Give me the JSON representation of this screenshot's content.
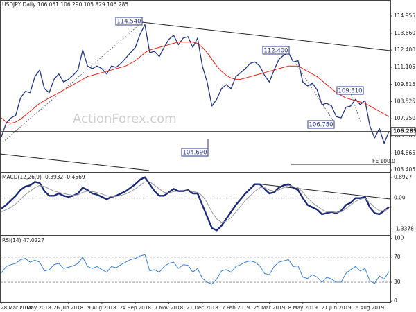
{
  "chart_data": [
    {
      "type": "line",
      "title": "USDJPY Daily 106.051 106.290 105.829 106.285",
      "watermark": "ActionForex.com",
      "categories": [
        "28 Mar 2018",
        null,
        null,
        null,
        null,
        null,
        null,
        "11 May 2018",
        null,
        null,
        null,
        null,
        null,
        null,
        "26 Jun 2018",
        null,
        null,
        null,
        null,
        null,
        null,
        "9 Aug 2018",
        null,
        null,
        null,
        null,
        null,
        null,
        "24 Sep 2018",
        null,
        null,
        null,
        null,
        null,
        null,
        "7 Nov 2018",
        null,
        null,
        null,
        null,
        null,
        null,
        "21 Dec 2018",
        null,
        null,
        null,
        null,
        null,
        null,
        "7 Feb 2019",
        null,
        null,
        null,
        null,
        null,
        null,
        "25 Mar 2019",
        null,
        null,
        null,
        null,
        null,
        null,
        "8 May 2019",
        null,
        null,
        null,
        null,
        null,
        null,
        "21 Jun 2019",
        null,
        null,
        null,
        null,
        null,
        null,
        "6 Aug 2019",
        null,
        null,
        null,
        null
      ],
      "series": [
        {
          "color": "#1f3580",
          "values": [
            105.9,
            106.9,
            107.3,
            107.5,
            108.8,
            109.3,
            109.2,
            110.4,
            110.9,
            109.5,
            109.2,
            110.2,
            110.6,
            110.0,
            110.2,
            110.5,
            110.9,
            112.4,
            111.2,
            111.0,
            111.2,
            111.0,
            110.6,
            111.2,
            111.1,
            111.4,
            111.8,
            112.2,
            112.6,
            113.6,
            114.3,
            112.2,
            112.3,
            111.9,
            112.6,
            113.2,
            113.5,
            112.8,
            113.3,
            113.4,
            112.6,
            113.3,
            111.2,
            110.0,
            108.2,
            108.7,
            109.5,
            109.8,
            109.5,
            110.4,
            110.7,
            111.0,
            111.4,
            111.5,
            111.2,
            110.5,
            110.0,
            110.9,
            111.7,
            112.0,
            112.2,
            111.5,
            111.6,
            110.0,
            109.7,
            109.9,
            109.4,
            108.3,
            108.4,
            108.2,
            107.4,
            107.3,
            108.1,
            108.2,
            108.7,
            108.3,
            108.6,
            106.7,
            105.8,
            106.5,
            105.4,
            106.3
          ]
        },
        {
          "color": "#e32219",
          "values": [
            107.3,
            107.0,
            106.9,
            107.0,
            107.2,
            107.5,
            107.8,
            108.1,
            108.4,
            108.6,
            108.8,
            109.0,
            109.2,
            109.4,
            109.6,
            109.8,
            110.0,
            110.2,
            110.4,
            110.5,
            110.6,
            110.7,
            110.8,
            110.9,
            111.0,
            111.1,
            111.2,
            111.4,
            111.6,
            111.9,
            112.2,
            112.4,
            112.5,
            112.6,
            112.7,
            112.8,
            112.9,
            113.0,
            113.0,
            113.0,
            113.0,
            112.9,
            112.6,
            112.2,
            111.7,
            111.2,
            110.8,
            110.5,
            110.3,
            110.2,
            110.2,
            110.3,
            110.4,
            110.5,
            110.6,
            110.7,
            110.8,
            110.9,
            111.0,
            111.1,
            111.2,
            111.2,
            111.2,
            111.0,
            110.8,
            110.6,
            110.4,
            110.1,
            109.8,
            109.5,
            109.2,
            109.0,
            108.8,
            108.7,
            108.6,
            108.5,
            108.4,
            108.2,
            108.0,
            107.8,
            107.6,
            107.4
          ]
        }
      ],
      "ylim": [
        103.25,
        116.1
      ],
      "yticks": [
        103.405,
        104.665,
        {
          "value": 105.96,
          "label": "105.960"
        },
        {
          "value": 107.25,
          "label": "107.250"
        },
        108.525,
        109.815,
        111.105,
        {
          "value": 112.4,
          "label": "112.400"
        },
        {
          "value": 113.66,
          "label": "113.660"
        },
        114.955
      ],
      "last_price": 106.285,
      "annotations": [
        "114.540",
        "104.690",
        "112.400",
        "109.310",
        "106.780",
        "FE 100.0"
      ]
    },
    {
      "type": "line",
      "title": "MACD(12,26,9) -0.3932 -0.4569",
      "series": [
        {
          "color": "#1c2a78",
          "values": [
            -0.45,
            -0.3,
            -0.1,
            0.1,
            0.35,
            0.5,
            0.55,
            0.7,
            0.65,
            0.3,
            0.1,
            0.1,
            0.2,
            0.1,
            0.05,
            0.1,
            0.2,
            0.45,
            0.35,
            0.2,
            0.15,
            0.05,
            -0.05,
            0.05,
            0.1,
            0.2,
            0.3,
            0.45,
            0.6,
            0.8,
            0.9,
            0.6,
            0.3,
            0.1,
            0.1,
            0.25,
            0.4,
            0.3,
            0.3,
            0.35,
            0.2,
            0.2,
            -0.3,
            -0.8,
            -1.3,
            -1.4,
            -1.2,
            -0.9,
            -0.6,
            -0.3,
            -0.05,
            0.2,
            0.4,
            0.6,
            0.6,
            0.4,
            0.2,
            0.25,
            0.45,
            0.55,
            0.6,
            0.45,
            0.35,
            0.0,
            -0.3,
            -0.4,
            -0.5,
            -0.7,
            -0.65,
            -0.6,
            -0.65,
            -0.55,
            -0.3,
            -0.2,
            0.0,
            0.0,
            0.05,
            -0.4,
            -0.65,
            -0.7,
            -0.55,
            -0.39
          ]
        },
        {
          "color": "#9a9a9a",
          "values": [
            -0.6,
            -0.5,
            -0.4,
            -0.25,
            -0.05,
            0.15,
            0.3,
            0.45,
            0.55,
            0.5,
            0.4,
            0.3,
            0.25,
            0.2,
            0.15,
            0.12,
            0.14,
            0.25,
            0.3,
            0.28,
            0.24,
            0.18,
            0.1,
            0.07,
            0.07,
            0.12,
            0.18,
            0.28,
            0.4,
            0.55,
            0.7,
            0.7,
            0.55,
            0.4,
            0.25,
            0.22,
            0.28,
            0.3,
            0.3,
            0.32,
            0.28,
            0.25,
            0.1,
            -0.2,
            -0.6,
            -0.9,
            -1.05,
            -1.0,
            -0.85,
            -0.6,
            -0.35,
            -0.1,
            0.1,
            0.3,
            0.45,
            0.45,
            0.35,
            0.3,
            0.35,
            0.45,
            0.55,
            0.5,
            0.45,
            0.25,
            0.0,
            -0.2,
            -0.35,
            -0.5,
            -0.6,
            -0.6,
            -0.62,
            -0.6,
            -0.45,
            -0.3,
            -0.15,
            -0.05,
            0.0,
            -0.2,
            -0.4,
            -0.55,
            -0.55,
            -0.46
          ]
        }
      ],
      "ylim": [
        -1.6,
        1.07
      ],
      "yticks": [
        -1.3378,
        {
          "value": 0,
          "label": "0.00"
        },
        0.8927
      ],
      "reference_lines": [
        0
      ]
    },
    {
      "type": "line",
      "title": "RSI(14) 47.0227",
      "series": [
        {
          "color": "#3a7fd5",
          "values": [
            45,
            55,
            58,
            60,
            66,
            68,
            62,
            65,
            62,
            48,
            50,
            58,
            60,
            52,
            54,
            56,
            60,
            70,
            55,
            52,
            55,
            50,
            46,
            55,
            53,
            58,
            62,
            66,
            68,
            72,
            74,
            48,
            50,
            46,
            55,
            60,
            62,
            52,
            58,
            57,
            46,
            52,
            36,
            30,
            27,
            35,
            48,
            50,
            46,
            55,
            58,
            62,
            64,
            62,
            56,
            44,
            42,
            55,
            62,
            64,
            66,
            55,
            56,
            38,
            36,
            42,
            38,
            30,
            38,
            35,
            30,
            30,
            44,
            50,
            55,
            48,
            52,
            32,
            28,
            40,
            35,
            47
          ]
        }
      ],
      "ylim": [
        -2,
        103
      ],
      "yticks": [
        0,
        30,
        70,
        100
      ],
      "reference_lines": [
        70,
        30
      ]
    }
  ]
}
